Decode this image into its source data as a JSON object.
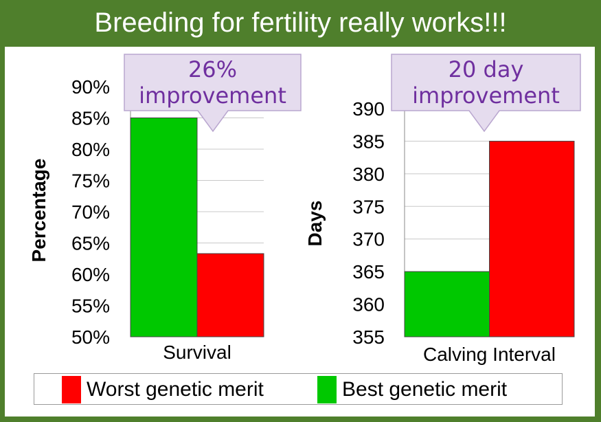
{
  "slide": {
    "title": "Breeding for fertility really works!!!",
    "colors": {
      "frame": "#4f7f2c",
      "best": "#00c800",
      "worst": "#ff0000",
      "callout_fill": "#e5dcee",
      "callout_text": "#6f2f9f",
      "grid": "#c8c8c8"
    }
  },
  "legend": {
    "items": [
      {
        "label": "Worst genetic merit",
        "color": "#ff0000"
      },
      {
        "label": "Best genetic merit",
        "color": "#00c800"
      }
    ]
  },
  "chart_data": [
    {
      "type": "bar",
      "title": "",
      "ylabel": "Percentage",
      "xlabel": "",
      "categories": [
        "Survival"
      ],
      "series": [
        {
          "name": "Best genetic merit",
          "values": [
            85
          ]
        },
        {
          "name": "Worst genetic merit",
          "values": [
            63.3
          ]
        }
      ],
      "ylim": [
        50,
        90
      ],
      "yticks": [
        "50%",
        "55%",
        "60%",
        "65%",
        "70%",
        "75%",
        "80%",
        "85%",
        "90%"
      ],
      "grid": true,
      "callout": {
        "lines": [
          "26%",
          "improvement"
        ]
      }
    },
    {
      "type": "bar",
      "title": "",
      "ylabel": "Days",
      "xlabel": "",
      "categories": [
        "Calving Interval"
      ],
      "series": [
        {
          "name": "Best genetic merit",
          "values": [
            365
          ]
        },
        {
          "name": "Worst genetic merit",
          "values": [
            385
          ]
        }
      ],
      "ylim": [
        355,
        390
      ],
      "yticks": [
        "355",
        "360",
        "365",
        "370",
        "375",
        "380",
        "385",
        "390"
      ],
      "grid": true,
      "callout": {
        "lines": [
          "20 day",
          "improvement"
        ]
      }
    }
  ]
}
